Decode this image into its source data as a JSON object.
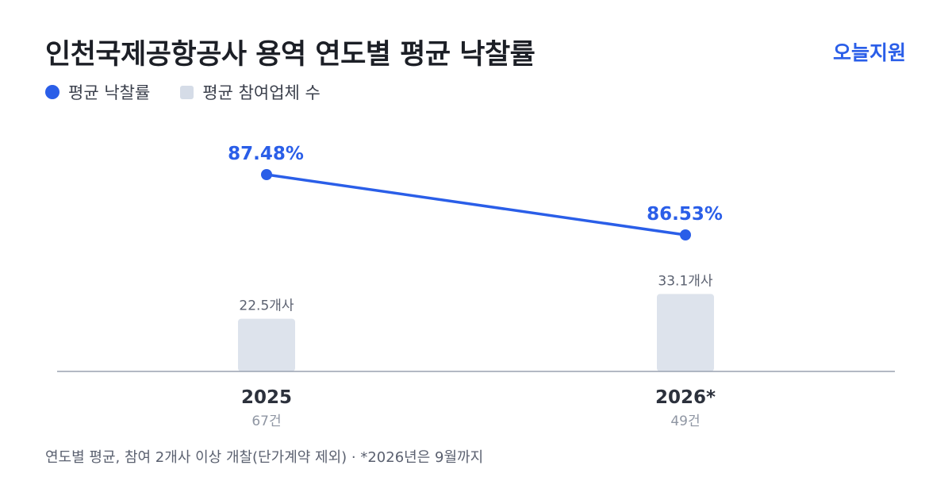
{
  "header": {
    "title": "인천국제공항공사 용역 연도별 평균 낙찰률",
    "brand": "오늘지원"
  },
  "legend": {
    "line_label": "평균 낙찰률",
    "bar_label": "평균 참여업체 수"
  },
  "footnote": "연도별 평균, 참여 2개사 이상 개찰(단가계약 제외) · *2026년은 9월까지",
  "colors": {
    "line": "#2a5ee8",
    "bar": "#dde3ec",
    "axis": "#9aa2b1"
  },
  "chart_data": {
    "type": "bar",
    "categories": [
      "2025",
      "2026*"
    ],
    "sublabels": [
      "67건",
      "49건"
    ],
    "bars": {
      "name": "평균 참여업체 수",
      "values": [
        22.5,
        33.1
      ],
      "labels": [
        "22.5개사",
        "33.1개사"
      ]
    },
    "line": {
      "name": "평균 낙찰률",
      "values": [
        87.48,
        86.53
      ],
      "labels": [
        "87.48%",
        "86.53%"
      ]
    },
    "legend_position": "top-left",
    "grid": false
  }
}
